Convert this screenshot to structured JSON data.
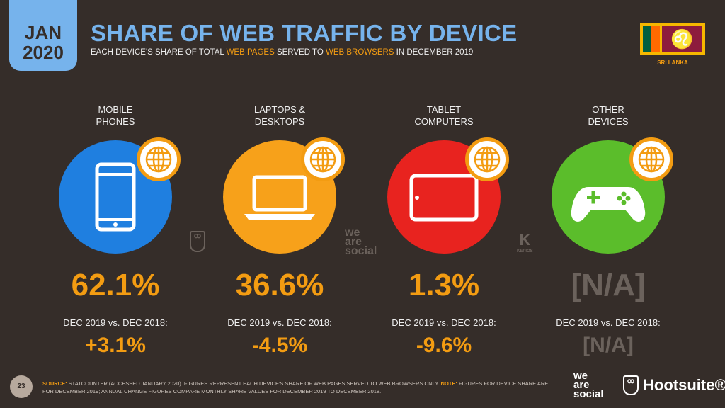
{
  "header": {
    "date_month": "JAN",
    "date_year": "2020",
    "title": "SHARE OF WEB TRAFFIC BY DEVICE",
    "subtitle_parts": [
      "EACH DEVICE'S SHARE OF TOTAL ",
      "WEB PAGES",
      " SERVED TO ",
      "WEB BROWSERS",
      " IN DECEMBER 2019"
    ]
  },
  "country": "SRI LANKA",
  "devices": [
    {
      "label1": "MOBILE",
      "label2": "PHONES",
      "share": "62.1%",
      "comparison": "DEC 2019 vs. DEC 2018:",
      "change": "+3.1%",
      "color": "#1f7fe0",
      "icon": "mobile-phone-icon"
    },
    {
      "label1": "LAPTOPS &",
      "label2": "DESKTOPS",
      "share": "36.6%",
      "comparison": "DEC 2019 vs. DEC 2018:",
      "change": "-4.5%",
      "color": "#f7a11a",
      "icon": "laptop-icon"
    },
    {
      "label1": "TABLET",
      "label2": "COMPUTERS",
      "share": "1.3%",
      "comparison": "DEC 2019 vs. DEC 2018:",
      "change": "-9.6%",
      "color": "#e8231f",
      "icon": "tablet-icon"
    },
    {
      "label1": "OTHER",
      "label2": "DEVICES",
      "share": "[N/A]",
      "comparison": "DEC 2019 vs. DEC 2018:",
      "change": "[N/A]",
      "color": "#5bbd2b",
      "icon": "gamepad-icon"
    }
  ],
  "footer": {
    "page_number": "23",
    "source_label": "SOURCE:",
    "source_text": " STATCOUNTER (ACCESSED JANUARY 2020). FIGURES REPRESENT EACH DEVICE'S SHARE OF WEB PAGES SERVED TO WEB BROWSERS ONLY. ",
    "note_label": "NOTE:",
    "note_text": " FIGURES FOR DEVICE SHARE ARE FOR DECEMBER 2019; ANNUAL CHANGE FIGURES COMPARE MONTHLY SHARE VALUES FOR DECEMBER 2019 TO DECEMBER 2018.",
    "we": "we",
    "are": "are",
    "social": "social",
    "hootsuite": "Hootsuite®",
    "kepios": "KEPIOS"
  }
}
